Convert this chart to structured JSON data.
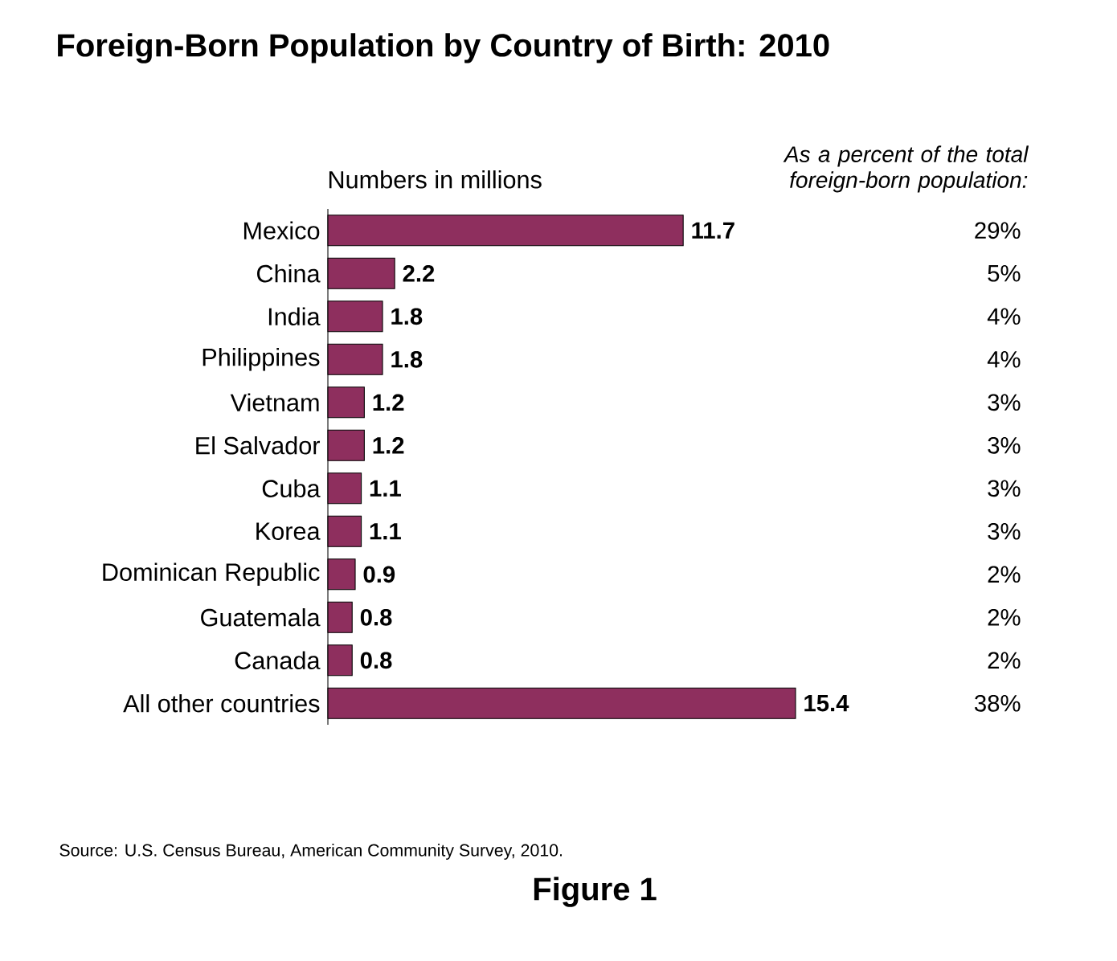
{
  "chart_data": {
    "type": "bar",
    "orientation": "horizontal",
    "title": "Foreign-Born Population by Country of Birth: 2010",
    "xlabel": "Numbers in millions",
    "categories": [
      "Mexico",
      "China",
      "India",
      "Philippines",
      "Vietnam",
      "El Salvador",
      "Cuba",
      "Korea",
      "Dominican Republic",
      "Guatemala",
      "Canada",
      "All other countries"
    ],
    "values": [
      11.7,
      2.2,
      1.8,
      1.8,
      1.2,
      1.2,
      1.1,
      1.1,
      0.9,
      0.8,
      0.8,
      15.4
    ],
    "color": "#8e2f5e",
    "data_labels": true,
    "annotations": [
      "As a percent of the total foreign-born population:",
      "29%",
      "5%",
      "4%",
      "4%",
      "3%",
      "3%",
      "3%",
      "3%",
      "2%",
      "2%",
      "2%",
      "38%",
      "Source: U.S. Census Bureau, American Community Survey, 2010.",
      "Figure 1"
    ]
  }
}
